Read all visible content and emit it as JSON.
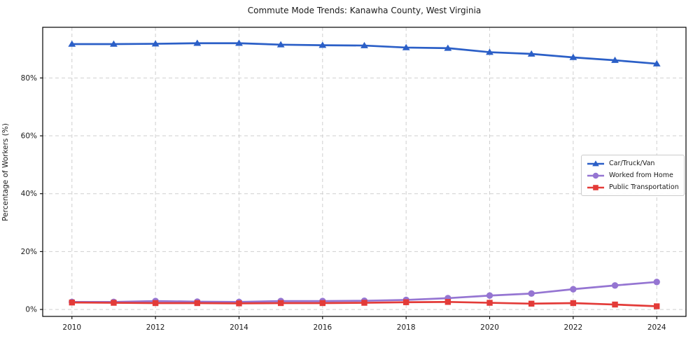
{
  "window": {
    "background_color": "#ffffff"
  },
  "chart_data": {
    "type": "line",
    "title": "Commute Mode Trends: Kanawha County, West Virginia",
    "xlabel": "",
    "ylabel": "Percentage of Workers (%)",
    "x": [
      2010,
      2011,
      2012,
      2013,
      2014,
      2015,
      2016,
      2017,
      2018,
      2019,
      2020,
      2021,
      2022,
      2023,
      2024
    ],
    "series": [
      {
        "name": "Car/Truck/Van",
        "color": "#2b5fc7",
        "marker": "triangle",
        "values": [
          91.7,
          91.7,
          91.8,
          92.0,
          92.0,
          91.5,
          91.3,
          91.2,
          90.5,
          90.3,
          88.9,
          88.3,
          87.1,
          86.1,
          84.9
        ]
      },
      {
        "name": "Worked from Home",
        "color": "#9575d2",
        "marker": "circle",
        "values": [
          2.6,
          2.6,
          2.9,
          2.7,
          2.6,
          2.9,
          2.9,
          3.0,
          3.3,
          3.9,
          4.8,
          5.5,
          7.0,
          8.3,
          9.5
        ]
      },
      {
        "name": "Public Transportation",
        "color": "#e33b38",
        "marker": "square",
        "values": [
          2.4,
          2.3,
          2.2,
          2.2,
          2.1,
          2.2,
          2.2,
          2.3,
          2.5,
          2.6,
          2.3,
          2.0,
          2.2,
          1.7,
          1.1
        ]
      }
    ],
    "x_ticks": [
      2010,
      2012,
      2014,
      2016,
      2018,
      2020,
      2022,
      2024
    ],
    "x_tick_labels": [
      "2010",
      "2012",
      "2014",
      "2016",
      "2018",
      "2020",
      "2022",
      "2024"
    ],
    "y_ticks": [
      0,
      20,
      40,
      60,
      80
    ],
    "y_tick_labels": [
      "0%",
      "20%",
      "40%",
      "60%",
      "80%"
    ],
    "xlim": [
      2009.3,
      2024.7
    ],
    "ylim": [
      -2.4,
      97.5
    ],
    "grid": true,
    "grid_style": "dashed",
    "grid_color": "#cfcfcf",
    "axis_color": "#000000",
    "text_color": "#1a1a1a",
    "legend_position": "center right"
  }
}
